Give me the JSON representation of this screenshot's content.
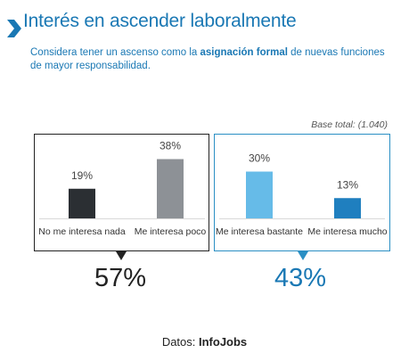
{
  "title": "Interés en ascender laboralmente",
  "subtitle": {
    "before": "Considera tener un ascenso como la ",
    "bold": "asignación formal",
    "after": " de nuevas funciones de mayor responsabilidad."
  },
  "base_note": "Base total: (1.040)",
  "colors": {
    "accent": "#1a78b4",
    "dark_bar": "#2b2f33",
    "gray_bar": "#8d9196",
    "light_blue_bar": "#66bbe8",
    "blue_bar": "#1f7fbf"
  },
  "chart_data": {
    "type": "bar",
    "categories": [
      "No me interesa nada",
      "Me interesa poco",
      "Me interesa bastante",
      "Me interesa mucho"
    ],
    "values": [
      19,
      38,
      30,
      13
    ],
    "value_labels": [
      "19%",
      "38%",
      "30%",
      "13%"
    ],
    "unit": "%",
    "groups": [
      {
        "categories": [
          "No me interesa nada",
          "Me interesa poco"
        ],
        "total": "57%"
      },
      {
        "categories": [
          "Me interesa bastante",
          "Me interesa mucho"
        ],
        "total": "43%"
      }
    ],
    "ylim": [
      0,
      40
    ]
  },
  "source": {
    "label": "Datos: ",
    "name": "InfoJobs"
  }
}
